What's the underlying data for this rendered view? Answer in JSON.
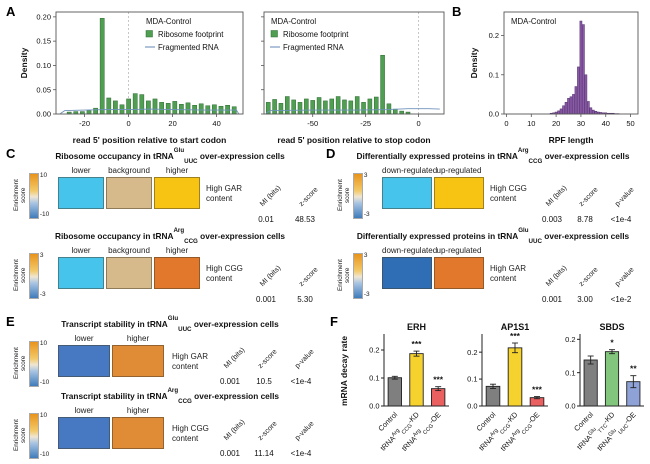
{
  "panels": {
    "A": "A",
    "B": "B",
    "C": "C",
    "D": "D",
    "E": "E",
    "F": "F"
  },
  "chart_data": [
    {
      "id": "start-codon",
      "type": "hist",
      "legend": {
        "title": "MDA-Control",
        "pos": "tr",
        "items": [
          {
            "swatch": "square",
            "color": "#4f9e52",
            "label": "Ribosome footprint"
          },
          {
            "swatch": "line",
            "color": "#6f92bd",
            "label": "Fragmented RNA"
          }
        ]
      },
      "xlabel": "read 5' position relative to start codon",
      "ylabel": "Density",
      "xlim": [
        -33,
        52
      ],
      "ylim": [
        0,
        0.21
      ],
      "vline": 0,
      "barw": 1.9,
      "bar_fill": "#4f9e52",
      "bar_edge": "#2c6b30",
      "line_color": "#6f92bd",
      "xticks": [
        -20,
        0,
        20,
        40
      ],
      "yticks": [
        {
          "v": 0,
          "s": "0.00"
        },
        {
          "v": 0.05,
          "s": "0.05"
        },
        {
          "v": 0.1,
          "s": "0.10"
        },
        {
          "v": 0.15,
          "s": "0.15"
        },
        {
          "v": 0.2,
          "s": "0.20"
        }
      ],
      "bars": {
        "x": [
          -27,
          -24,
          -21,
          -18,
          -15,
          -12,
          -9,
          -6,
          -3,
          0,
          3,
          6,
          9,
          12,
          15,
          18,
          21,
          24,
          27,
          30,
          33,
          36,
          39,
          42,
          45,
          48
        ],
        "y": [
          0.004,
          0.005,
          0.005,
          0.007,
          0.012,
          0.197,
          0.033,
          0.027,
          0.019,
          0.031,
          0.042,
          0.04,
          0.027,
          0.031,
          0.024,
          0.022,
          0.026,
          0.02,
          0.023,
          0.018,
          0.021,
          0.017,
          0.019,
          0.016,
          0.018,
          0.015
        ]
      },
      "line": [
        [
          -31,
          0.001
        ],
        [
          -29,
          0.007
        ],
        [
          -20,
          0.008
        ],
        [
          -10,
          0.009
        ],
        [
          0,
          0.009
        ],
        [
          10,
          0.01
        ],
        [
          20,
          0.009
        ],
        [
          35,
          0.008
        ],
        [
          49,
          0.008
        ],
        [
          50,
          0.001
        ]
      ]
    },
    {
      "id": "stop-codon",
      "type": "hist",
      "legend": {
        "title": "MDA-Control",
        "pos": "tl",
        "items": [
          {
            "swatch": "square",
            "color": "#4f9e52",
            "label": "Ribosome footprint"
          },
          {
            "swatch": "line",
            "color": "#6f92bd",
            "label": "Fragmented RNA"
          }
        ]
      },
      "xlabel": "read 5' position relative to stop codon",
      "xlim": [
        -73,
        12
      ],
      "ylim": [
        0,
        0.21
      ],
      "vline": 0,
      "barw": 1.9,
      "bar_fill": "#4f9e52",
      "bar_edge": "#2c6b30",
      "line_color": "#6f92bd",
      "xticks": [
        -50,
        -25,
        0
      ],
      "yticks": [
        {
          "v": 0
        },
        {
          "v": 0.05
        },
        {
          "v": 0.1
        },
        {
          "v": 0.15
        },
        {
          "v": 0.2
        }
      ],
      "bars": {
        "x": [
          -71,
          -68,
          -65,
          -62,
          -59,
          -56,
          -53,
          -50,
          -47,
          -44,
          -41,
          -38,
          -35,
          -32,
          -29,
          -26,
          -23,
          -20,
          -17,
          -14,
          -11,
          -8,
          -5
        ],
        "y": [
          0.024,
          0.03,
          0.022,
          0.036,
          0.029,
          0.024,
          0.031,
          0.028,
          0.034,
          0.027,
          0.031,
          0.036,
          0.029,
          0.027,
          0.036,
          0.024,
          0.031,
          0.035,
          0.121,
          0.021,
          0.01,
          0.006,
          0.004
        ]
      },
      "line": [
        [
          -72,
          0.002
        ],
        [
          -70,
          0.007
        ],
        [
          -50,
          0.008
        ],
        [
          -30,
          0.008
        ],
        [
          -15,
          0.009
        ],
        [
          -5,
          0.011
        ],
        [
          5,
          0.011
        ],
        [
          10,
          0.01
        ]
      ]
    },
    {
      "id": "rpf-length",
      "type": "hist",
      "legend": {
        "title": "MDA-Control",
        "pos": "tl",
        "items": []
      },
      "xlabel": "RPF length",
      "ylabel": "Density",
      "xlim": [
        -1,
        53
      ],
      "ylim": [
        0,
        0.26
      ],
      "barw": 0.85,
      "bar_fill": "#8c5aa8",
      "bar_edge": "#50306b",
      "xticks": [
        0,
        10,
        20,
        30,
        40,
        50
      ],
      "yticks": [
        {
          "v": 0,
          "s": "0.0"
        },
        {
          "v": 0.1,
          "s": "0.1"
        },
        {
          "v": 0.2,
          "s": "0.2"
        }
      ],
      "bars": {
        "x": [
          18,
          19,
          20,
          21,
          22,
          23,
          24,
          25,
          26,
          27,
          28,
          29,
          30,
          31,
          32,
          33,
          34,
          35,
          36,
          37,
          38,
          39,
          40,
          41,
          42,
          43,
          44,
          45
        ],
        "y": [
          0.002,
          0.003,
          0.005,
          0.008,
          0.013,
          0.021,
          0.03,
          0.04,
          0.044,
          0.05,
          0.07,
          0.12,
          0.237,
          0.228,
          0.1,
          0.032,
          0.016,
          0.01,
          0.007,
          0.005,
          0.004,
          0.003,
          0.003,
          0.002,
          0.002,
          0.002,
          0.001,
          0.001
        ]
      }
    },
    {
      "id": "erh",
      "type": "bars",
      "title": "ERH",
      "ylabel": "mRNA decay rate",
      "ylim": [
        0,
        0.25
      ],
      "yticks": [
        {
          "v": 0,
          "s": "0.0"
        },
        {
          "v": 0.1,
          "s": "0.1"
        },
        {
          "v": 0.2,
          "s": "0.2"
        }
      ],
      "values": [
        0.101,
        0.187,
        0.062
      ],
      "errors": [
        0.005,
        0.009,
        0.007
      ],
      "stars": [
        "",
        "***",
        "***"
      ],
      "colors": [
        "#7f7f7f",
        "#f5d22e",
        "#ea5f5f"
      ],
      "cats": [
        [
          {
            "t": "n",
            "s": "Control"
          }
        ],
        [
          {
            "t": "n",
            "s": "tRNA"
          },
          {
            "t": "sup",
            "s": "Arg"
          },
          {
            "t": "sub",
            "s": "CCG"
          },
          {
            "t": "n",
            "s": "-KD"
          }
        ],
        [
          {
            "t": "n",
            "s": "tRNA"
          },
          {
            "t": "sup",
            "s": "Arg"
          },
          {
            "t": "sub",
            "s": "CCG"
          },
          {
            "t": "n",
            "s": "-OE"
          }
        ]
      ]
    },
    {
      "id": "ap1s1",
      "type": "bars",
      "title": "AP1S1",
      "ylim": [
        0,
        0.26
      ],
      "yticks": [
        {
          "v": 0,
          "s": "0.0"
        },
        {
          "v": 0.1,
          "s": "0.1"
        },
        {
          "v": 0.2,
          "s": "0.2"
        }
      ],
      "values": [
        0.073,
        0.216,
        0.031
      ],
      "errors": [
        0.008,
        0.018,
        0.004
      ],
      "stars": [
        "",
        "***",
        "***"
      ],
      "colors": [
        "#7f7f7f",
        "#f5d22e",
        "#ea5f5f"
      ],
      "cats": [
        [
          {
            "t": "n",
            "s": "Control"
          }
        ],
        [
          {
            "t": "n",
            "s": "tRNA"
          },
          {
            "t": "sup",
            "s": "Arg"
          },
          {
            "t": "sub",
            "s": "CCG"
          },
          {
            "t": "n",
            "s": "-KD"
          }
        ],
        [
          {
            "t": "n",
            "s": "tRNA"
          },
          {
            "t": "sup",
            "s": "Arg"
          },
          {
            "t": "sub",
            "s": "CCG"
          },
          {
            "t": "n",
            "s": "-OE"
          }
        ]
      ]
    },
    {
      "id": "sbds",
      "type": "bars",
      "title": "SBDS",
      "ylim": [
        0,
        0.21
      ],
      "yticks": [
        {
          "v": 0,
          "s": "0.0"
        },
        {
          "v": 0.1,
          "s": "0.1"
        },
        {
          "v": 0.2,
          "s": "0.2"
        }
      ],
      "values": [
        0.138,
        0.163,
        0.073
      ],
      "errors": [
        0.012,
        0.006,
        0.018
      ],
      "stars": [
        "",
        "*",
        "**"
      ],
      "colors": [
        "#7f7f7f",
        "#82c57c",
        "#8ea2d8"
      ],
      "cats": [
        [
          {
            "t": "n",
            "s": "Control"
          }
        ],
        [
          {
            "t": "n",
            "s": "tRNA"
          },
          {
            "t": "sup",
            "s": "Glu"
          },
          {
            "t": "sub",
            "s": "TTC"
          },
          {
            "t": "n",
            "s": "-KD"
          }
        ],
        [
          {
            "t": "n",
            "s": "tRNA"
          },
          {
            "t": "sup",
            "s": "Glu"
          },
          {
            "t": "sub",
            "s": "UUC"
          },
          {
            "t": "n",
            "s": "-OE"
          }
        ]
      ]
    }
  ],
  "heatmaps": [
    {
      "title": [
        {
          "t": "n",
          "s": "Ribosome occupancy in tRNA"
        },
        {
          "t": "sup",
          "s": "Glu"
        },
        {
          "t": "sub",
          "s": "UUC"
        },
        {
          "t": "n",
          "s": " over-expression cells"
        }
      ],
      "colorbar": {
        "label": "Enrichment score",
        "max": "10",
        "min": "-10"
      },
      "cells": [
        {
          "label": "lower",
          "color": "#47c4ec"
        },
        {
          "label": "background",
          "color": "#d7ba8b"
        },
        {
          "label": "higher",
          "color": "#f7c414"
        }
      ],
      "row_label": [
        "High GAR",
        "content"
      ],
      "stats": [
        {
          "header": "MI (bits)",
          "value": "0.01"
        },
        {
          "header": "z-score",
          "value": "48.53"
        }
      ]
    },
    {
      "title": [
        {
          "t": "n",
          "s": "Ribosome occupancy in tRNA"
        },
        {
          "t": "sup",
          "s": "Arg"
        },
        {
          "t": "sub",
          "s": "CCG"
        },
        {
          "t": "n",
          "s": " over-expression cells"
        }
      ],
      "colorbar": {
        "label": "Enrichment score",
        "max": "3",
        "min": "-3"
      },
      "cells": [
        {
          "label": "lower",
          "color": "#47c4ec"
        },
        {
          "label": "background",
          "color": "#d7ba8b"
        },
        {
          "label": "higher",
          "color": "#e1782b"
        }
      ],
      "row_label": [
        "High CGG",
        "content"
      ],
      "stats": [
        {
          "header": "MI (bits)",
          "value": "0.001"
        },
        {
          "header": "z-score",
          "value": "5.30"
        }
      ]
    },
    {
      "title": [
        {
          "t": "n",
          "s": "Differentially expressed proteins in tRNA"
        },
        {
          "t": "sup",
          "s": "Arg"
        },
        {
          "t": "sub",
          "s": "CCG"
        },
        {
          "t": "n",
          "s": " over-expression cells"
        }
      ],
      "colorbar": {
        "label": "Enrichment score",
        "max": "3",
        "min": "-3"
      },
      "cells": [
        {
          "label": "down-regulated",
          "color": "#47c4ec"
        },
        {
          "label": "up-regulated",
          "color": "#f7c414"
        }
      ],
      "row_label": [
        "High CGG",
        "content"
      ],
      "stats": [
        {
          "header": "MI (bits)",
          "value": "0.003"
        },
        {
          "header": "z-score",
          "value": "8.78"
        },
        {
          "header": "p-value",
          "value": "<1e-4"
        }
      ]
    },
    {
      "title": [
        {
          "t": "n",
          "s": "Differentially expressed proteins in tRNA"
        },
        {
          "t": "sup",
          "s": "Glu"
        },
        {
          "t": "sub",
          "s": "UUC"
        },
        {
          "t": "n",
          "s": " over-expression cells"
        }
      ],
      "colorbar": {
        "label": "Enrichment score",
        "max": "3",
        "min": "-3"
      },
      "cells": [
        {
          "label": "down-regulated",
          "color": "#2f6eb5"
        },
        {
          "label": "up-regulated",
          "color": "#e1782b"
        }
      ],
      "row_label": [
        "High GAR",
        "content"
      ],
      "stats": [
        {
          "header": "MI (bits)",
          "value": "0.001"
        },
        {
          "header": "z-score",
          "value": "3.00"
        },
        {
          "header": "p-value",
          "value": "<1e-2"
        }
      ]
    },
    {
      "title": [
        {
          "t": "n",
          "s": "Transcript stability in tRNA"
        },
        {
          "t": "sup",
          "s": "Glu"
        },
        {
          "t": "sub",
          "s": "UUC"
        },
        {
          "t": "n",
          "s": " over-expression cells"
        }
      ],
      "colorbar": {
        "label": "Enrichment score",
        "max": "10",
        "min": "-10"
      },
      "cells": [
        {
          "label": "lower",
          "color": "#4679c1"
        },
        {
          "label": "higher",
          "color": "#e08b36"
        }
      ],
      "row_label": [
        "High GAR",
        "content"
      ],
      "stats": [
        {
          "header": "MI (bits)",
          "value": "0.001"
        },
        {
          "header": "z-score",
          "value": "10.5"
        },
        {
          "header": "p-value",
          "value": "<1e-4"
        }
      ]
    },
    {
      "title": [
        {
          "t": "n",
          "s": "Transcript stability in tRNA"
        },
        {
          "t": "sup",
          "s": "Arg"
        },
        {
          "t": "sub",
          "s": "CCG"
        },
        {
          "t": "n",
          "s": " over-expression cells"
        }
      ],
      "colorbar": {
        "label": "Enrichment score",
        "max": "10",
        "min": "-10"
      },
      "cells": [
        {
          "label": "lower",
          "color": "#4679c1"
        },
        {
          "label": "higher",
          "color": "#e08b36"
        }
      ],
      "row_label": [
        "High CGG",
        "content"
      ],
      "stats": [
        {
          "header": "MI (bits)",
          "value": "0.001"
        },
        {
          "header": "z-score",
          "value": "11.14"
        },
        {
          "header": "p-value",
          "value": "<1e-4"
        }
      ]
    }
  ]
}
